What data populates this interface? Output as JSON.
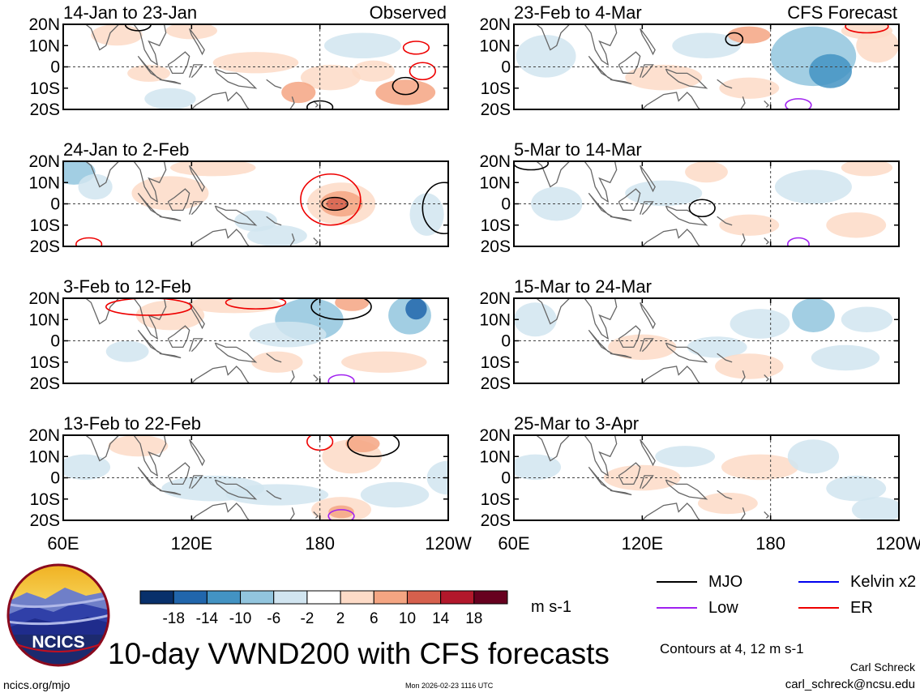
{
  "chart_data": {
    "type": "heatmap",
    "variable": "VWND200",
    "contour_note": "Contours at 4, 12 m s-1",
    "y_ticks": [
      "20N",
      "10N",
      "0",
      "10S",
      "20S"
    ],
    "x_ticks": [
      "60E",
      "120E",
      "180",
      "120W"
    ],
    "xlim": [
      60,
      240
    ],
    "ylim": [
      -20,
      20
    ],
    "panels": [
      {
        "id": "obs1",
        "column": 0,
        "row": 0,
        "title": "14-Jan to 23-Jan",
        "label": "Observed"
      },
      {
        "id": "obs2",
        "column": 0,
        "row": 1,
        "title": "24-Jan to 2-Feb",
        "label": ""
      },
      {
        "id": "obs3",
        "column": 0,
        "row": 2,
        "title": "3-Feb to 12-Feb",
        "label": ""
      },
      {
        "id": "obs4",
        "column": 0,
        "row": 3,
        "title": "13-Feb to 22-Feb",
        "label": ""
      },
      {
        "id": "fc1",
        "column": 1,
        "row": 0,
        "title": "23-Feb to 4-Mar",
        "label": "CFS Forecast"
      },
      {
        "id": "fc2",
        "column": 1,
        "row": 1,
        "title": "5-Mar to 14-Mar",
        "label": ""
      },
      {
        "id": "fc3",
        "column": 1,
        "row": 2,
        "title": "15-Mar to 24-Mar",
        "label": ""
      },
      {
        "id": "fc4",
        "column": 1,
        "row": 3,
        "title": "25-Mar to 3-Apr",
        "label": ""
      }
    ],
    "colorbar": {
      "labels": [
        "-18",
        "-14",
        "-10",
        "-6",
        "-2",
        "2",
        "6",
        "10",
        "14",
        "18"
      ],
      "colors": [
        "#08306b",
        "#2166ac",
        "#4393c3",
        "#92c5de",
        "#d1e5f0",
        "#ffffff",
        "#fddbc7",
        "#f4a582",
        "#d6604d",
        "#b2182b",
        "#67001f"
      ],
      "units": "m s-1"
    },
    "legend": [
      {
        "name": "MJO",
        "color": "#000000"
      },
      {
        "name": "Kelvin x2",
        "color": "#0000ee"
      },
      {
        "name": "Low",
        "color": "#a020f0"
      },
      {
        "name": "ER",
        "color": "#ee0000"
      }
    ]
  },
  "footer": {
    "main_title": "10-day VWND200 with CFS forecasts",
    "author": "Carl Schreck",
    "email": "carl_schreck@ncsu.edu",
    "site": "ncics.org/mjo",
    "timestamp": "Mon 2026-02-23 1116 UTC",
    "logo_text": "NCICS"
  }
}
